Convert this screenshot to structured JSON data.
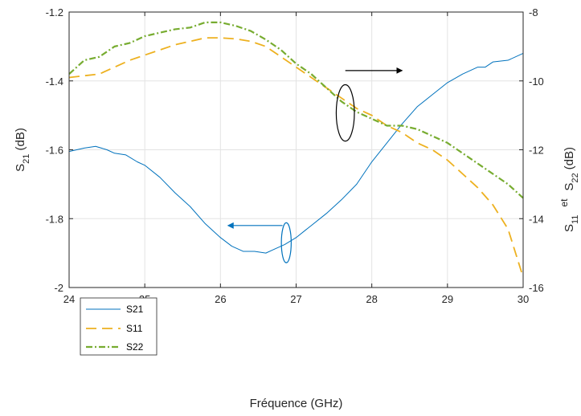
{
  "chart_data": {
    "type": "line",
    "xlabel": "Fréquence (GHz)",
    "ylabel_left": {
      "main": "S",
      "sub": "21",
      "unit": " (dB)"
    },
    "ylabel_right": {
      "s11_main": "S",
      "s11_sub": "11",
      "et": "et",
      "s22_main": "S",
      "s22_sub": "22",
      "unit": "(dB)"
    },
    "xlim": [
      24,
      30
    ],
    "ylim_left": [
      -2,
      -1.2
    ],
    "ylim_right": [
      -16,
      -8
    ],
    "x_ticks": [
      24,
      25,
      26,
      27,
      28,
      29,
      30
    ],
    "y_left_ticks": [
      -2,
      -1.8,
      -1.6,
      -1.4,
      -1.2
    ],
    "y_right_ticks": [
      -16,
      -14,
      -12,
      -10,
      -8
    ],
    "grid": true,
    "legend_position": "bottom-left",
    "series": [
      {
        "name": "S21",
        "axis": "left",
        "color": "#0072BD",
        "style": "solid",
        "x": [
          24.0,
          24.1,
          24.2,
          24.35,
          24.5,
          24.6,
          24.75,
          24.9,
          25.0,
          25.2,
          25.4,
          25.6,
          25.8,
          26.0,
          26.15,
          26.3,
          26.45,
          26.6,
          26.7,
          26.85,
          27.0,
          27.2,
          27.4,
          27.6,
          27.8,
          28.0,
          28.2,
          28.4,
          28.6,
          28.8,
          29.0,
          29.2,
          29.4,
          29.5,
          29.6,
          29.8,
          30.0
        ],
        "values": [
          -1.605,
          -1.6,
          -1.595,
          -1.59,
          -1.6,
          -1.61,
          -1.615,
          -1.635,
          -1.645,
          -1.68,
          -1.725,
          -1.765,
          -1.815,
          -1.855,
          -1.88,
          -1.895,
          -1.895,
          -1.9,
          -1.89,
          -1.875,
          -1.855,
          -1.82,
          -1.785,
          -1.745,
          -1.7,
          -1.635,
          -1.58,
          -1.525,
          -1.475,
          -1.44,
          -1.405,
          -1.38,
          -1.36,
          -1.36,
          -1.345,
          -1.34,
          -1.32
        ]
      },
      {
        "name": "S11",
        "axis": "right",
        "color": "#EDB120",
        "style": "dashed",
        "x": [
          24.0,
          24.2,
          24.4,
          24.6,
          24.8,
          25.0,
          25.2,
          25.4,
          25.6,
          25.8,
          26.0,
          26.2,
          26.4,
          26.6,
          26.8,
          27.0,
          27.2,
          27.4,
          27.6,
          27.8,
          28.0,
          28.2,
          28.4,
          28.6,
          28.8,
          29.0,
          29.2,
          29.4,
          29.6,
          29.8,
          30.0
        ],
        "values": [
          -9.9,
          -9.85,
          -9.8,
          -9.6,
          -9.4,
          -9.25,
          -9.1,
          -8.95,
          -8.85,
          -8.75,
          -8.75,
          -8.78,
          -8.85,
          -9.0,
          -9.3,
          -9.6,
          -9.9,
          -10.2,
          -10.5,
          -10.8,
          -11.0,
          -11.3,
          -11.5,
          -11.8,
          -12.0,
          -12.3,
          -12.7,
          -13.1,
          -13.6,
          -14.3,
          -15.7
        ]
      },
      {
        "name": "S22",
        "axis": "right",
        "color": "#77AC30",
        "style": "dashdot",
        "x": [
          24.0,
          24.2,
          24.4,
          24.6,
          24.8,
          25.0,
          25.2,
          25.4,
          25.6,
          25.8,
          26.0,
          26.2,
          26.4,
          26.6,
          26.8,
          27.0,
          27.2,
          27.4,
          27.6,
          27.8,
          28.0,
          28.2,
          28.4,
          28.6,
          28.8,
          29.0,
          29.2,
          29.4,
          29.6,
          29.8,
          30.0
        ],
        "values": [
          -9.8,
          -9.4,
          -9.3,
          -9.0,
          -8.9,
          -8.7,
          -8.6,
          -8.5,
          -8.45,
          -8.3,
          -8.3,
          -8.4,
          -8.55,
          -8.8,
          -9.1,
          -9.5,
          -9.8,
          -10.2,
          -10.6,
          -10.9,
          -11.1,
          -11.3,
          -11.3,
          -11.4,
          -11.6,
          -11.8,
          -12.1,
          -12.4,
          -12.7,
          -13.0,
          -13.4
        ]
      }
    ],
    "annotations": [
      {
        "type": "ellipse",
        "target": "right-axis",
        "cx": 27.65,
        "cy": -10.93,
        "rx_data": 0.12,
        "ry_data": 0.82,
        "color": "#000000"
      },
      {
        "type": "arrow",
        "target": "right-axis",
        "x1": 27.65,
        "y1": -9.7,
        "x2": 28.4,
        "y2": -9.7,
        "color": "#000000"
      },
      {
        "type": "ellipse",
        "target": "left-axis",
        "cx": 26.87,
        "cy": -1.87,
        "rx_data": 0.065,
        "ry_data": 0.058,
        "color": "#0072BD"
      },
      {
        "type": "arrow",
        "target": "left-axis",
        "x1": 26.82,
        "y1": -1.82,
        "x2": 26.1,
        "y2": -1.82,
        "color": "#0072BD"
      }
    ]
  }
}
